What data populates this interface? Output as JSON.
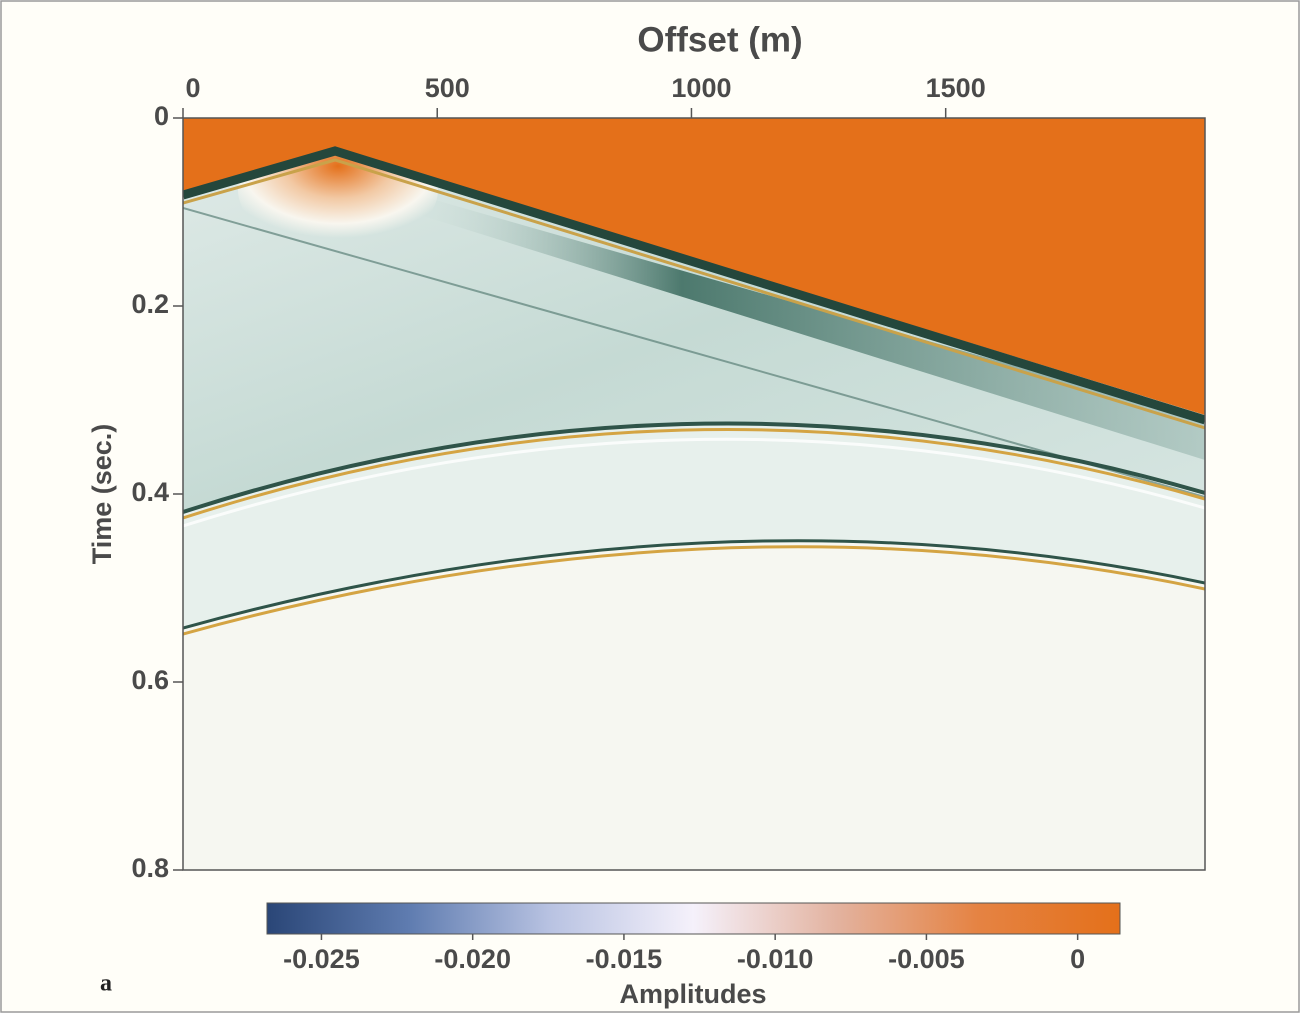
{
  "chart_data": {
    "type": "heatmap",
    "x_label": "Offset (m)",
    "y_label": "Time (sec.)",
    "x_axis_position": "top",
    "y_inverted": true,
    "xlim": [
      0,
      2010
    ],
    "xticks": [
      0,
      500,
      1000,
      1500
    ],
    "ylim": [
      0,
      0.8
    ],
    "yticks": [
      0,
      0.2,
      0.4,
      0.6,
      0.8
    ],
    "colorbar_label": "Amplitudes",
    "clim": [
      -0.0268,
      0.0014
    ],
    "cticks": [
      -0.025,
      {
        "value": -0.02,
        "label": "-0.020"
      },
      -0.015,
      {
        "value": -0.01,
        "label": "-0.010"
      },
      -0.005,
      0
    ],
    "colormap": [
      "#2a4677",
      "#5f7cb0",
      "#b9c3e2",
      "#f5f1fb",
      "#e3b3a0",
      "#e58343",
      "#e4701a"
    ],
    "panel_label": "a"
  }
}
